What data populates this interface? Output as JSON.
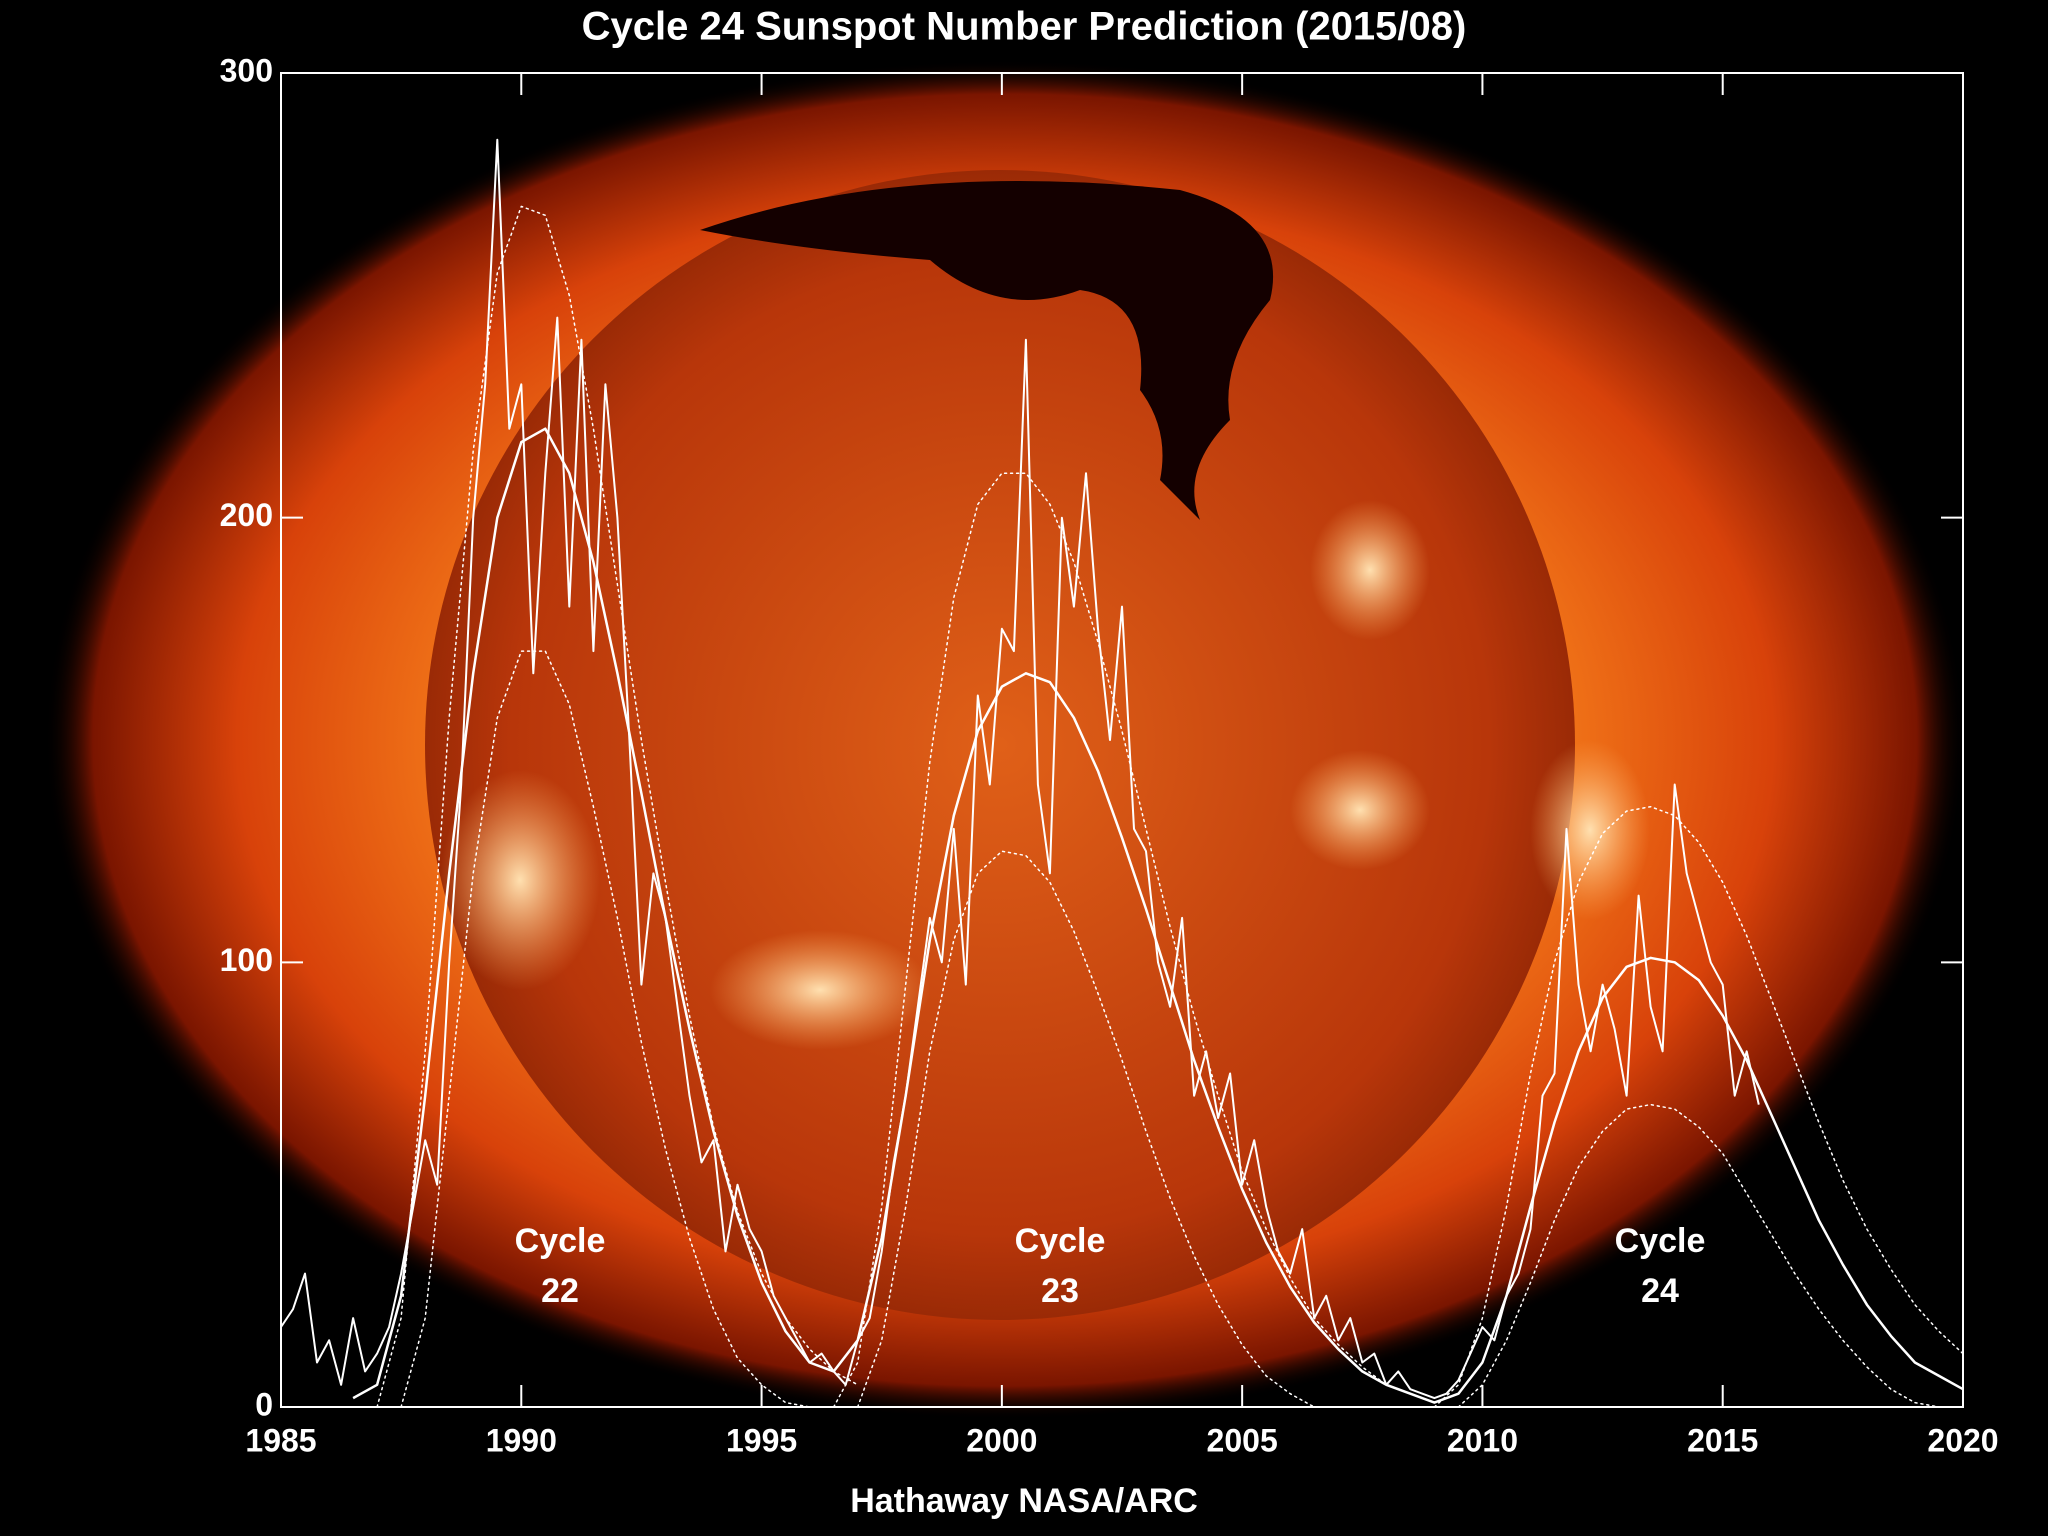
{
  "chart_data": {
    "type": "line",
    "title": "Cycle 24 Sunspot Number Prediction (2015/08)",
    "x_label": "Hathaway  NASA/ARC",
    "xlim": [
      1985,
      2020
    ],
    "xticks": [
      1985,
      1990,
      1995,
      2000,
      2005,
      2010,
      2015,
      2020
    ],
    "ylim": [
      0,
      300
    ],
    "yticks": [
      0,
      100,
      200,
      300
    ],
    "annotations": [
      {
        "lines": [
          "Cycle",
          "22"
        ]
      },
      {
        "lines": [
          "Cycle",
          "23"
        ]
      },
      {
        "lines": [
          "Cycle",
          "24"
        ]
      }
    ],
    "series": [
      {
        "color": "#ffffff",
        "style": "solid",
        "width": 2,
        "x": [
          1985.0,
          1985.25,
          1985.5,
          1985.75,
          1986.0,
          1986.25,
          1986.5,
          1986.75,
          1987.0,
          1987.25,
          1987.5,
          1987.75,
          1988.0,
          1988.25,
          1988.5,
          1988.75,
          1989.0,
          1989.25,
          1989.5,
          1989.75,
          1990.0,
          1990.25,
          1990.5,
          1990.75,
          1991.0,
          1991.25,
          1991.5,
          1991.75,
          1992.0,
          1992.25,
          1992.5,
          1992.75,
          1993.0,
          1993.25,
          1993.5,
          1993.75,
          1994.0,
          1994.25,
          1994.5,
          1994.75,
          1995.0,
          1995.25,
          1995.5,
          1995.75,
          1996.0,
          1996.25,
          1996.5,
          1996.75,
          1997.0,
          1997.25,
          1997.5,
          1997.75,
          1998.0,
          1998.25,
          1998.5,
          1998.75,
          1999.0,
          1999.25,
          1999.5,
          1999.75,
          2000.0,
          2000.25,
          2000.5,
          2000.75,
          2001.0,
          2001.25,
          2001.5,
          2001.75,
          2002.0,
          2002.25,
          2002.5,
          2002.75,
          2003.0,
          2003.25,
          2003.5,
          2003.75,
          2004.0,
          2004.25,
          2004.5,
          2004.75,
          2005.0,
          2005.25,
          2005.5,
          2005.75,
          2006.0,
          2006.25,
          2006.5,
          2006.75,
          2007.0,
          2007.25,
          2007.5,
          2007.75,
          2008.0,
          2008.25,
          2008.5,
          2008.75,
          2009.0,
          2009.25,
          2009.5,
          2009.75,
          2010.0,
          2010.25,
          2010.5,
          2010.75,
          2011.0,
          2011.25,
          2011.5,
          2011.75,
          2012.0,
          2012.25,
          2012.5,
          2012.75,
          2013.0,
          2013.25,
          2013.5,
          2013.75,
          2014.0,
          2014.25,
          2014.5,
          2014.75,
          2015.0,
          2015.25,
          2015.5,
          2015.75
        ],
        "values": [
          18,
          22,
          30,
          10,
          15,
          5,
          20,
          8,
          12,
          18,
          30,
          45,
          60,
          50,
          100,
          140,
          200,
          230,
          285,
          220,
          230,
          165,
          210,
          245,
          180,
          240,
          170,
          230,
          200,
          150,
          95,
          120,
          110,
          90,
          70,
          55,
          60,
          35,
          50,
          40,
          35,
          25,
          20,
          15,
          10,
          12,
          8,
          5,
          15,
          20,
          35,
          55,
          70,
          90,
          110,
          100,
          130,
          95,
          160,
          140,
          175,
          170,
          240,
          140,
          120,
          200,
          180,
          210,
          175,
          150,
          180,
          130,
          125,
          100,
          90,
          110,
          70,
          80,
          65,
          75,
          50,
          60,
          45,
          35,
          30,
          40,
          20,
          25,
          15,
          20,
          10,
          12,
          5,
          8,
          4,
          3,
          2,
          3,
          6,
          12,
          18,
          15,
          25,
          30,
          40,
          70,
          75,
          130,
          95,
          80,
          95,
          85,
          70,
          115,
          90,
          80,
          140,
          120,
          110,
          100,
          95,
          70,
          80,
          68
        ]
      },
      {
        "color": "#ffffff",
        "style": "solid",
        "width": 2.5,
        "x": [
          1986.5,
          1987,
          1987.5,
          1988,
          1988.5,
          1989,
          1989.5,
          1990,
          1990.5,
          1991,
          1991.5,
          1992,
          1992.5,
          1993,
          1993.5,
          1994,
          1994.5,
          1995,
          1995.5,
          1996,
          1996.5,
          1997,
          1997.5,
          1998,
          1998.5,
          1999,
          1999.5,
          2000,
          2000.5,
          2001,
          2001.5,
          2002,
          2002.5,
          2003,
          2003.5,
          2004,
          2004.5,
          2005,
          2005.5,
          2006,
          2006.5,
          2007,
          2007.5,
          2008,
          2008.5,
          2009,
          2009.5,
          2010,
          2010.5,
          2011,
          2011.5,
          2012,
          2012.5,
          2013,
          2013.5,
          2014,
          2014.5,
          2015,
          2015.5,
          2016,
          2016.5,
          2017,
          2017.5,
          2018,
          2018.5,
          2019,
          2019.5,
          2020
        ],
        "values": [
          2,
          5,
          25,
          70,
          120,
          165,
          200,
          217,
          220,
          210,
          190,
          165,
          138,
          110,
          85,
          62,
          43,
          28,
          17,
          10,
          8,
          15,
          38,
          70,
          105,
          133,
          152,
          162,
          165,
          163,
          155,
          143,
          128,
          112,
          95,
          78,
          63,
          49,
          37,
          27,
          19,
          13,
          8,
          5,
          3,
          1,
          3,
          10,
          25,
          45,
          64,
          80,
          92,
          99,
          101,
          100,
          96,
          88,
          78,
          66,
          54,
          42,
          32,
          23,
          16,
          10,
          7,
          4
        ]
      },
      {
        "color": "#ffffff",
        "style": "dotted",
        "width": 1.5,
        "x": [
          1987,
          1987.5,
          1988,
          1988.5,
          1989,
          1989.5,
          1990,
          1990.5,
          1991,
          1991.5,
          1992,
          1992.5,
          1993,
          1993.5,
          1994,
          1994.5,
          1995,
          1995.5,
          1996,
          1996.5,
          1997
        ],
        "values": [
          0,
          20,
          80,
          155,
          215,
          255,
          270,
          268,
          250,
          220,
          185,
          150,
          118,
          88,
          63,
          44,
          30,
          20,
          13,
          8,
          5
        ]
      },
      {
        "color": "#ffffff",
        "style": "dotted",
        "width": 1.5,
        "x": [
          1987.5,
          1988,
          1988.5,
          1989,
          1989.5,
          1990,
          1990.5,
          1991,
          1991.5,
          1992,
          1992.5,
          1993,
          1993.5,
          1994,
          1994.5,
          1995,
          1995.5,
          1996
        ],
        "values": [
          0,
          20,
          70,
          120,
          155,
          170,
          170,
          158,
          135,
          110,
          82,
          58,
          38,
          22,
          11,
          5,
          1,
          0
        ]
      },
      {
        "color": "#ffffff",
        "style": "dotted",
        "width": 1.5,
        "x": [
          1996.5,
          1997,
          1997.5,
          1998,
          1998.5,
          1999,
          1999.5,
          2000,
          2000.5,
          2001,
          2001.5,
          2002,
          2002.5,
          2003,
          2003.5,
          2004,
          2004.5,
          2005,
          2005.5,
          2006,
          2006.5,
          2007,
          2007.5,
          2008,
          2008.5,
          2009
        ],
        "values": [
          0,
          10,
          45,
          95,
          145,
          182,
          203,
          210,
          210,
          203,
          190,
          172,
          152,
          130,
          108,
          88,
          70,
          53,
          40,
          29,
          20,
          14,
          9,
          5,
          3,
          1
        ]
      },
      {
        "color": "#ffffff",
        "style": "dotted",
        "width": 1.5,
        "x": [
          1997,
          1997.5,
          1998,
          1998.5,
          1999,
          1999.5,
          2000,
          2000.5,
          2001,
          2001.5,
          2002,
          2002.5,
          2003,
          2003.5,
          2004,
          2004.5,
          2005,
          2005.5,
          2006,
          2006.5
        ],
        "values": [
          0,
          15,
          45,
          80,
          105,
          120,
          125,
          124,
          118,
          107,
          93,
          78,
          62,
          47,
          34,
          23,
          14,
          7,
          3,
          0
        ]
      },
      {
        "color": "#ffffff",
        "style": "dotted",
        "width": 1.5,
        "x": [
          2009,
          2009.5,
          2010,
          2010.5,
          2011,
          2011.5,
          2012,
          2012.5,
          2013,
          2013.5,
          2014,
          2014.5,
          2015,
          2015.5,
          2016,
          2016.5,
          2017,
          2017.5,
          2018,
          2018.5,
          2019,
          2019.5,
          2020
        ],
        "values": [
          0,
          5,
          20,
          45,
          75,
          100,
          118,
          129,
          134,
          135,
          133,
          127,
          118,
          106,
          92,
          78,
          64,
          51,
          40,
          31,
          23,
          17,
          12
        ]
      },
      {
        "color": "#ffffff",
        "style": "dotted",
        "width": 1.5,
        "x": [
          2009.5,
          2010,
          2010.5,
          2011,
          2011.5,
          2012,
          2012.5,
          2013,
          2013.5,
          2014,
          2014.5,
          2015,
          2015.5,
          2016,
          2016.5,
          2017,
          2017.5,
          2018,
          2018.5,
          2019,
          2019.5
        ],
        "values": [
          0,
          5,
          15,
          28,
          42,
          54,
          62,
          67,
          68,
          67,
          63,
          57,
          48,
          39,
          30,
          22,
          15,
          9,
          4,
          1,
          0
        ]
      }
    ]
  }
}
